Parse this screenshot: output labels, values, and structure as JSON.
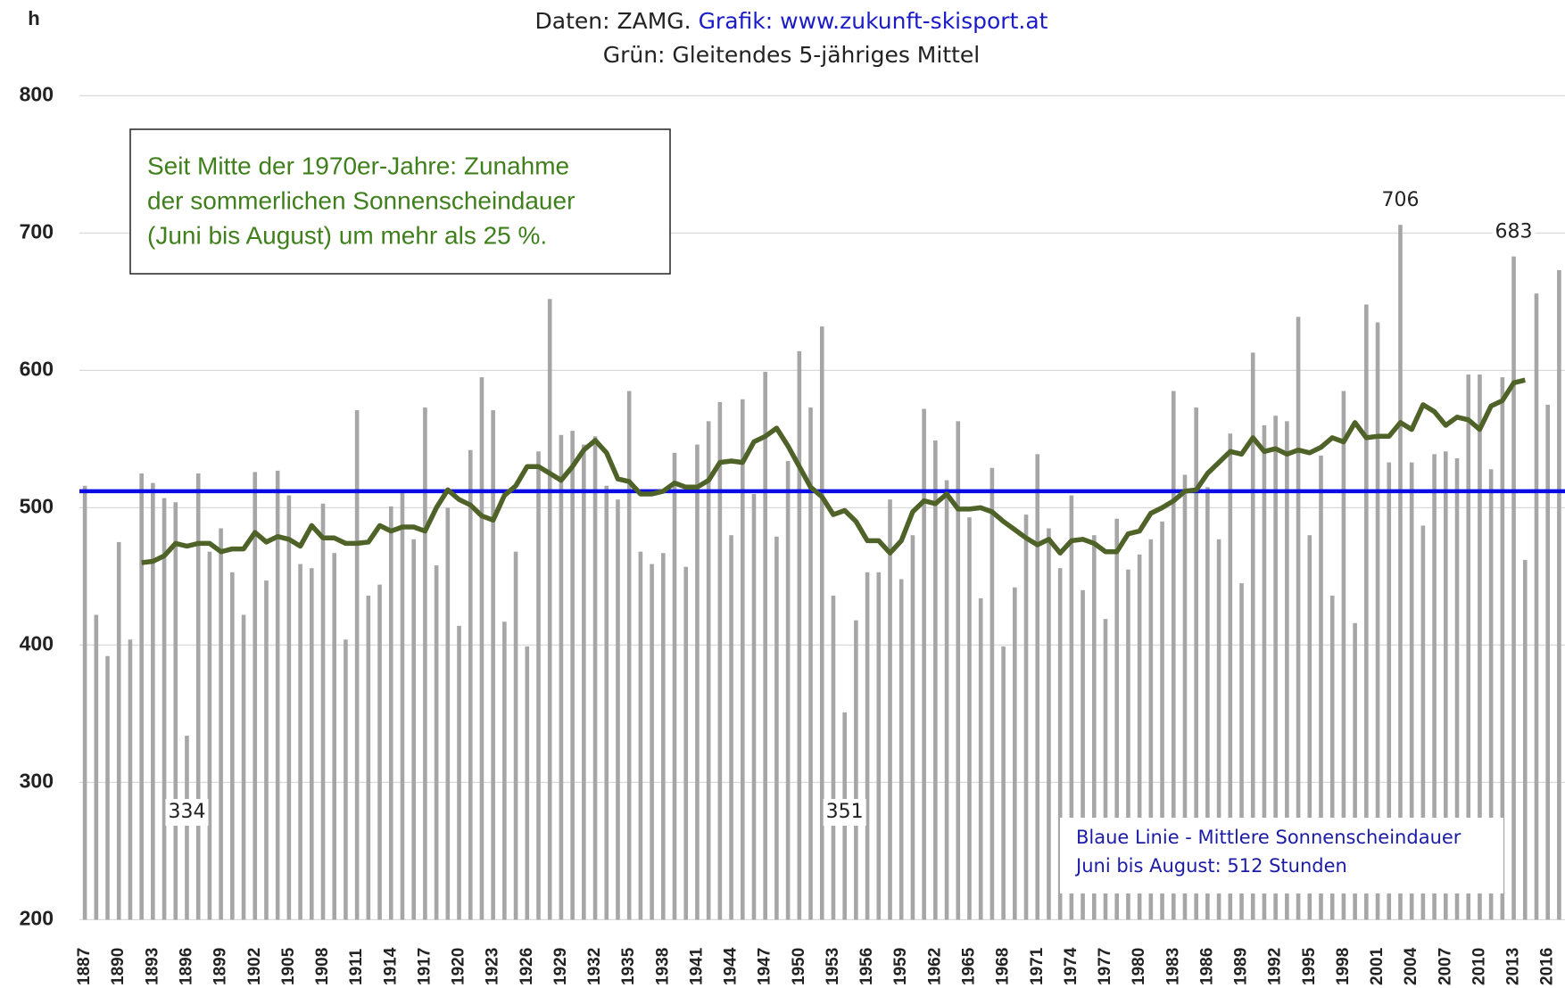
{
  "chart_data": {
    "type": "bar",
    "source": "Daten: ZAMG.",
    "credit": "Grafik: www.zukunft-skisport.at",
    "subtitle": "Grün: Gleitendes 5-jähriges Mittel",
    "y_unit": "h",
    "annotation": [
      "Seit Mitte der 1970er-Jahre: Zunahme",
      "der sommerlichen Sonnenscheindauer",
      "(Juni bis August) um mehr als 25 %."
    ],
    "mean_note": [
      "Blaue Linie - Mittlere Sonnenscheindauer",
      "Juni bis August: 512 Stunden"
    ],
    "mean": 512,
    "mean_color": "#0a0ae6",
    "categories": [
      "1887",
      null,
      null,
      "1890",
      null,
      null,
      "1893",
      null,
      null,
      "1896",
      null,
      null,
      "1899",
      null,
      null,
      "1902",
      null,
      null,
      "1905",
      null,
      null,
      "1908",
      null,
      null,
      "1911",
      null,
      null,
      "1914",
      null,
      null,
      "1917",
      null,
      null,
      "1920",
      null,
      null,
      "1923",
      null,
      null,
      "1926",
      null,
      null,
      "1929",
      null,
      null,
      "1932",
      null,
      null,
      "1935",
      null,
      null,
      "1938",
      null,
      null,
      "1941",
      null,
      null,
      "1944",
      null,
      null,
      "1947",
      null,
      null,
      "1950",
      null,
      null,
      "1953",
      null,
      null,
      "1956",
      null,
      null,
      "1959",
      null,
      null,
      "1962",
      null,
      null,
      "1965",
      null,
      null,
      "1968",
      null,
      null,
      "1971",
      null,
      null,
      "1974",
      null,
      null,
      "1977",
      null,
      null,
      "1980",
      null,
      null,
      "1983",
      null,
      null,
      "1986",
      null,
      null,
      "1989",
      null,
      null,
      "1992",
      null,
      null,
      "1995",
      null,
      null,
      "1998",
      null,
      null,
      "2001",
      null,
      null,
      "2004",
      null,
      null,
      "2007",
      null,
      null,
      "2010",
      null,
      null,
      "2013",
      null,
      null,
      "2016",
      null
    ],
    "series": [
      {
        "type": "bar",
        "color": "#a6a6a6",
        "values": [
          516,
          422,
          392,
          475,
          404,
          525,
          518,
          507,
          504,
          334,
          525,
          468,
          485,
          453,
          422,
          526,
          447,
          527,
          509,
          459,
          456,
          503,
          467,
          404,
          571,
          436,
          444,
          501,
          512,
          477,
          573,
          458,
          500,
          414,
          542,
          595,
          571,
          417,
          468,
          399,
          541,
          652,
          553,
          556,
          546,
          552,
          516,
          506,
          585,
          468,
          459,
          467,
          540,
          457,
          546,
          563,
          577,
          480,
          579,
          510,
          599,
          479,
          534,
          614,
          573,
          632,
          436,
          351,
          418,
          453,
          453,
          506,
          448,
          480,
          572,
          549,
          520,
          563,
          493,
          434,
          529,
          399,
          442,
          495,
          539,
          485,
          456,
          509,
          440,
          480,
          419,
          492,
          455,
          466,
          477,
          490,
          585,
          524,
          573,
          515,
          477,
          554,
          445,
          613,
          560,
          567,
          563,
          639,
          480,
          538,
          436,
          585,
          416,
          648,
          635,
          533,
          706,
          533,
          487,
          539,
          541,
          536,
          597,
          597,
          528,
          595,
          683,
          462,
          656,
          575,
          673
        ]
      },
      {
        "type": "line",
        "color": "#4f6228",
        "values": [
          null,
          null,
          null,
          null,
          null,
          460,
          461,
          465,
          474,
          472,
          474,
          474,
          468,
          470,
          470,
          482,
          475,
          479,
          477,
          472,
          487,
          478,
          478,
          474,
          474,
          475,
          487,
          483,
          486,
          486,
          483,
          500,
          513,
          506,
          502,
          494,
          491,
          509,
          516,
          530,
          530,
          525,
          520,
          530,
          542,
          549,
          540,
          521,
          519,
          510,
          510,
          512,
          518,
          515,
          515,
          520,
          533,
          534,
          533,
          548,
          552,
          558,
          545,
          530,
          515,
          508,
          495,
          498,
          490,
          476,
          476,
          467,
          476,
          497,
          505,
          503,
          510,
          499,
          499,
          500,
          497,
          490,
          484,
          478,
          473,
          477,
          467,
          476,
          477,
          474,
          468,
          468,
          481,
          483,
          496,
          500,
          505,
          512,
          513,
          525,
          533,
          541,
          539,
          551,
          541,
          543,
          539,
          542,
          540,
          544,
          551,
          548,
          562,
          551,
          552,
          552,
          562,
          557,
          575,
          570,
          560,
          566,
          564,
          557,
          574,
          578,
          591,
          593,
          null,
          null,
          null
        ]
      }
    ],
    "labeled_points": [
      9,
      67,
      116,
      126
    ],
    "ylim": [
      200,
      800
    ],
    "yticks": [
      200,
      300,
      400,
      500,
      600,
      700,
      800
    ],
    "grid": true
  }
}
